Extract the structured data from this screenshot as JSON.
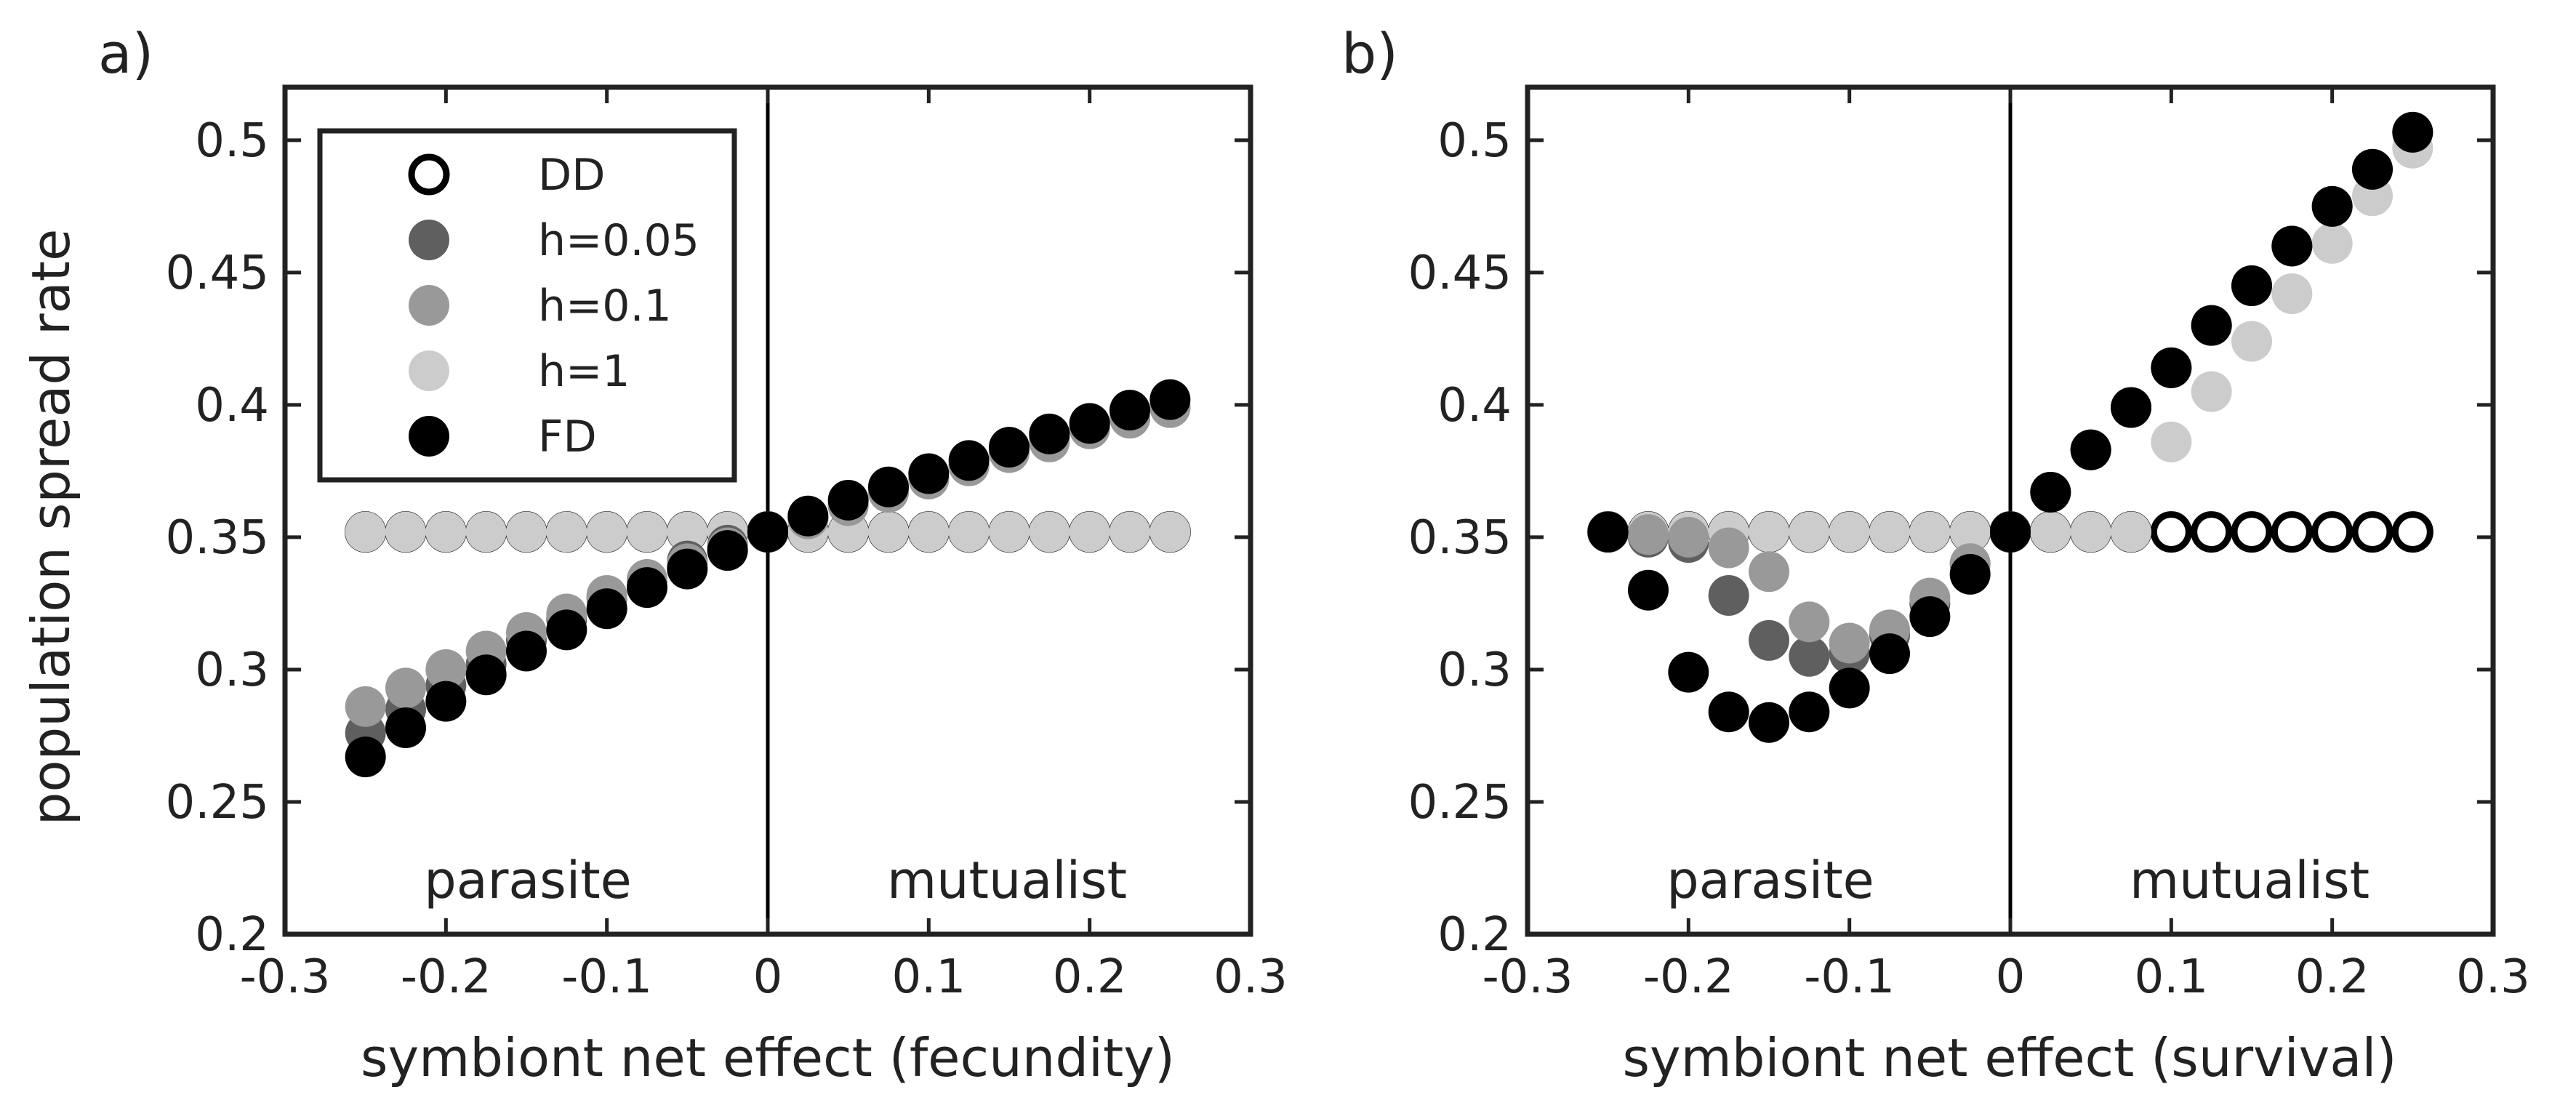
{
  "chart_data": [
    {
      "panel_label": "a)",
      "type": "scatter",
      "xlabel": "symbiont net effect (fecundity)",
      "ylabel": "population spread rate",
      "xlim": [
        -0.3,
        0.3
      ],
      "ylim": [
        0.2,
        0.52
      ],
      "xticks": [
        "-0.3",
        "-0.2",
        "-0.1",
        "0",
        "0.1",
        "0.2",
        "0.3"
      ],
      "yticks": [
        "0.2",
        "0.25",
        "0.3",
        "0.35",
        "0.4",
        "0.45",
        "0.5"
      ],
      "regions": {
        "left": "parasite",
        "right": "mutualist"
      },
      "legend": {
        "placement": "top-left",
        "entries": [
          "DD",
          "h=0.05",
          "h=0.1",
          "h=1",
          "FD"
        ]
      },
      "x": [
        -0.25,
        -0.225,
        -0.2,
        -0.175,
        -0.15,
        -0.125,
        -0.1,
        -0.075,
        -0.05,
        -0.025,
        0,
        0.025,
        0.05,
        0.075,
        0.1,
        0.125,
        0.15,
        0.175,
        0.2,
        0.225,
        0.25
      ],
      "series": [
        {
          "name": "DD",
          "color": "#ffffff",
          "edge": "#000000",
          "values": [
            0.352,
            0.352,
            0.352,
            0.352,
            0.352,
            0.352,
            0.352,
            0.352,
            0.352,
            0.352,
            0.352,
            0.352,
            0.352,
            0.352,
            0.352,
            0.352,
            0.352,
            0.352,
            0.352,
            0.352,
            0.352
          ]
        },
        {
          "name": "h=0.05",
          "color": "#5f5f5f",
          "values": [
            0.276,
            0.285,
            0.294,
            0.302,
            0.311,
            0.319,
            0.327,
            0.334,
            0.341,
            0.347,
            0.352,
            0.357,
            0.362,
            0.367,
            0.372,
            0.377,
            0.382,
            0.387,
            0.391,
            0.395,
            0.399
          ]
        },
        {
          "name": "h=0.1",
          "color": "#999999",
          "values": [
            0.286,
            0.293,
            0.3,
            0.307,
            0.314,
            0.321,
            0.328,
            0.334,
            0.34,
            0.346,
            0.352,
            0.357,
            0.362,
            0.367,
            0.372,
            0.377,
            0.382,
            0.386,
            0.391,
            0.395,
            0.399
          ]
        },
        {
          "name": "h=1",
          "color": "#cccccc",
          "values": [
            0.352,
            0.352,
            0.352,
            0.352,
            0.352,
            0.352,
            0.352,
            0.352,
            0.352,
            0.352,
            0.352,
            0.352,
            0.352,
            0.352,
            0.352,
            0.352,
            0.352,
            0.352,
            0.352,
            0.352,
            0.352
          ]
        },
        {
          "name": "FD",
          "color": "#000000",
          "values": [
            0.267,
            0.278,
            0.288,
            0.298,
            0.307,
            0.315,
            0.323,
            0.331,
            0.338,
            0.345,
            0.352,
            0.358,
            0.364,
            0.369,
            0.374,
            0.379,
            0.384,
            0.389,
            0.393,
            0.398,
            0.402
          ]
        }
      ]
    },
    {
      "panel_label": "b)",
      "type": "scatter",
      "xlabel": "symbiont net effect (survival)",
      "ylabel": "",
      "xlim": [
        -0.3,
        0.3
      ],
      "ylim": [
        0.2,
        0.52
      ],
      "xticks": [
        "-0.3",
        "-0.2",
        "-0.1",
        "0",
        "0.1",
        "0.2",
        "0.3"
      ],
      "yticks": [
        "0.2",
        "0.25",
        "0.3",
        "0.35",
        "0.4",
        "0.45",
        "0.5"
      ],
      "regions": {
        "left": "parasite",
        "right": "mutualist"
      },
      "x": [
        -0.25,
        -0.225,
        -0.2,
        -0.175,
        -0.15,
        -0.125,
        -0.1,
        -0.075,
        -0.05,
        -0.025,
        0,
        0.025,
        0.05,
        0.075,
        0.1,
        0.125,
        0.15,
        0.175,
        0.2,
        0.225,
        0.25
      ],
      "series": [
        {
          "name": "DD",
          "color": "#ffffff",
          "edge": "#000000",
          "values": [
            0.352,
            0.352,
            0.352,
            0.352,
            0.352,
            0.352,
            0.352,
            0.352,
            0.352,
            0.352,
            0.352,
            0.352,
            0.352,
            0.352,
            0.352,
            0.352,
            0.352,
            0.352,
            0.352,
            0.352,
            0.352
          ]
        },
        {
          "name": "h=0.05",
          "color": "#5f5f5f",
          "values": [
            0.352,
            0.35,
            0.348,
            0.328,
            0.311,
            0.305,
            0.306,
            0.313,
            0.325,
            0.34,
            0.352,
            0.367,
            0.383,
            0.399,
            0.414,
            0.43,
            0.445,
            0.46,
            0.475,
            0.489,
            0.503
          ]
        },
        {
          "name": "h=0.1",
          "color": "#999999",
          "values": [
            0.352,
            0.351,
            0.35,
            0.346,
            0.337,
            0.318,
            0.31,
            0.315,
            0.327,
            0.34,
            0.352,
            0.367,
            0.383,
            0.399,
            0.414,
            0.43,
            0.445,
            0.46,
            0.475,
            0.489,
            0.503
          ]
        },
        {
          "name": "h=1",
          "color": "#cccccc",
          "values": [
            0.352,
            0.352,
            0.352,
            0.352,
            0.352,
            0.352,
            0.352,
            0.352,
            0.352,
            0.352,
            0.352,
            0.352,
            0.352,
            0.352,
            0.386,
            0.405,
            0.424,
            0.442,
            0.461,
            0.479,
            0.497
          ]
        },
        {
          "name": "FD",
          "color": "#000000",
          "values": [
            0.352,
            0.33,
            0.299,
            0.284,
            0.28,
            0.284,
            0.293,
            0.306,
            0.32,
            0.336,
            0.352,
            0.367,
            0.383,
            0.399,
            0.414,
            0.43,
            0.445,
            0.46,
            0.475,
            0.489,
            0.503
          ]
        }
      ]
    }
  ]
}
